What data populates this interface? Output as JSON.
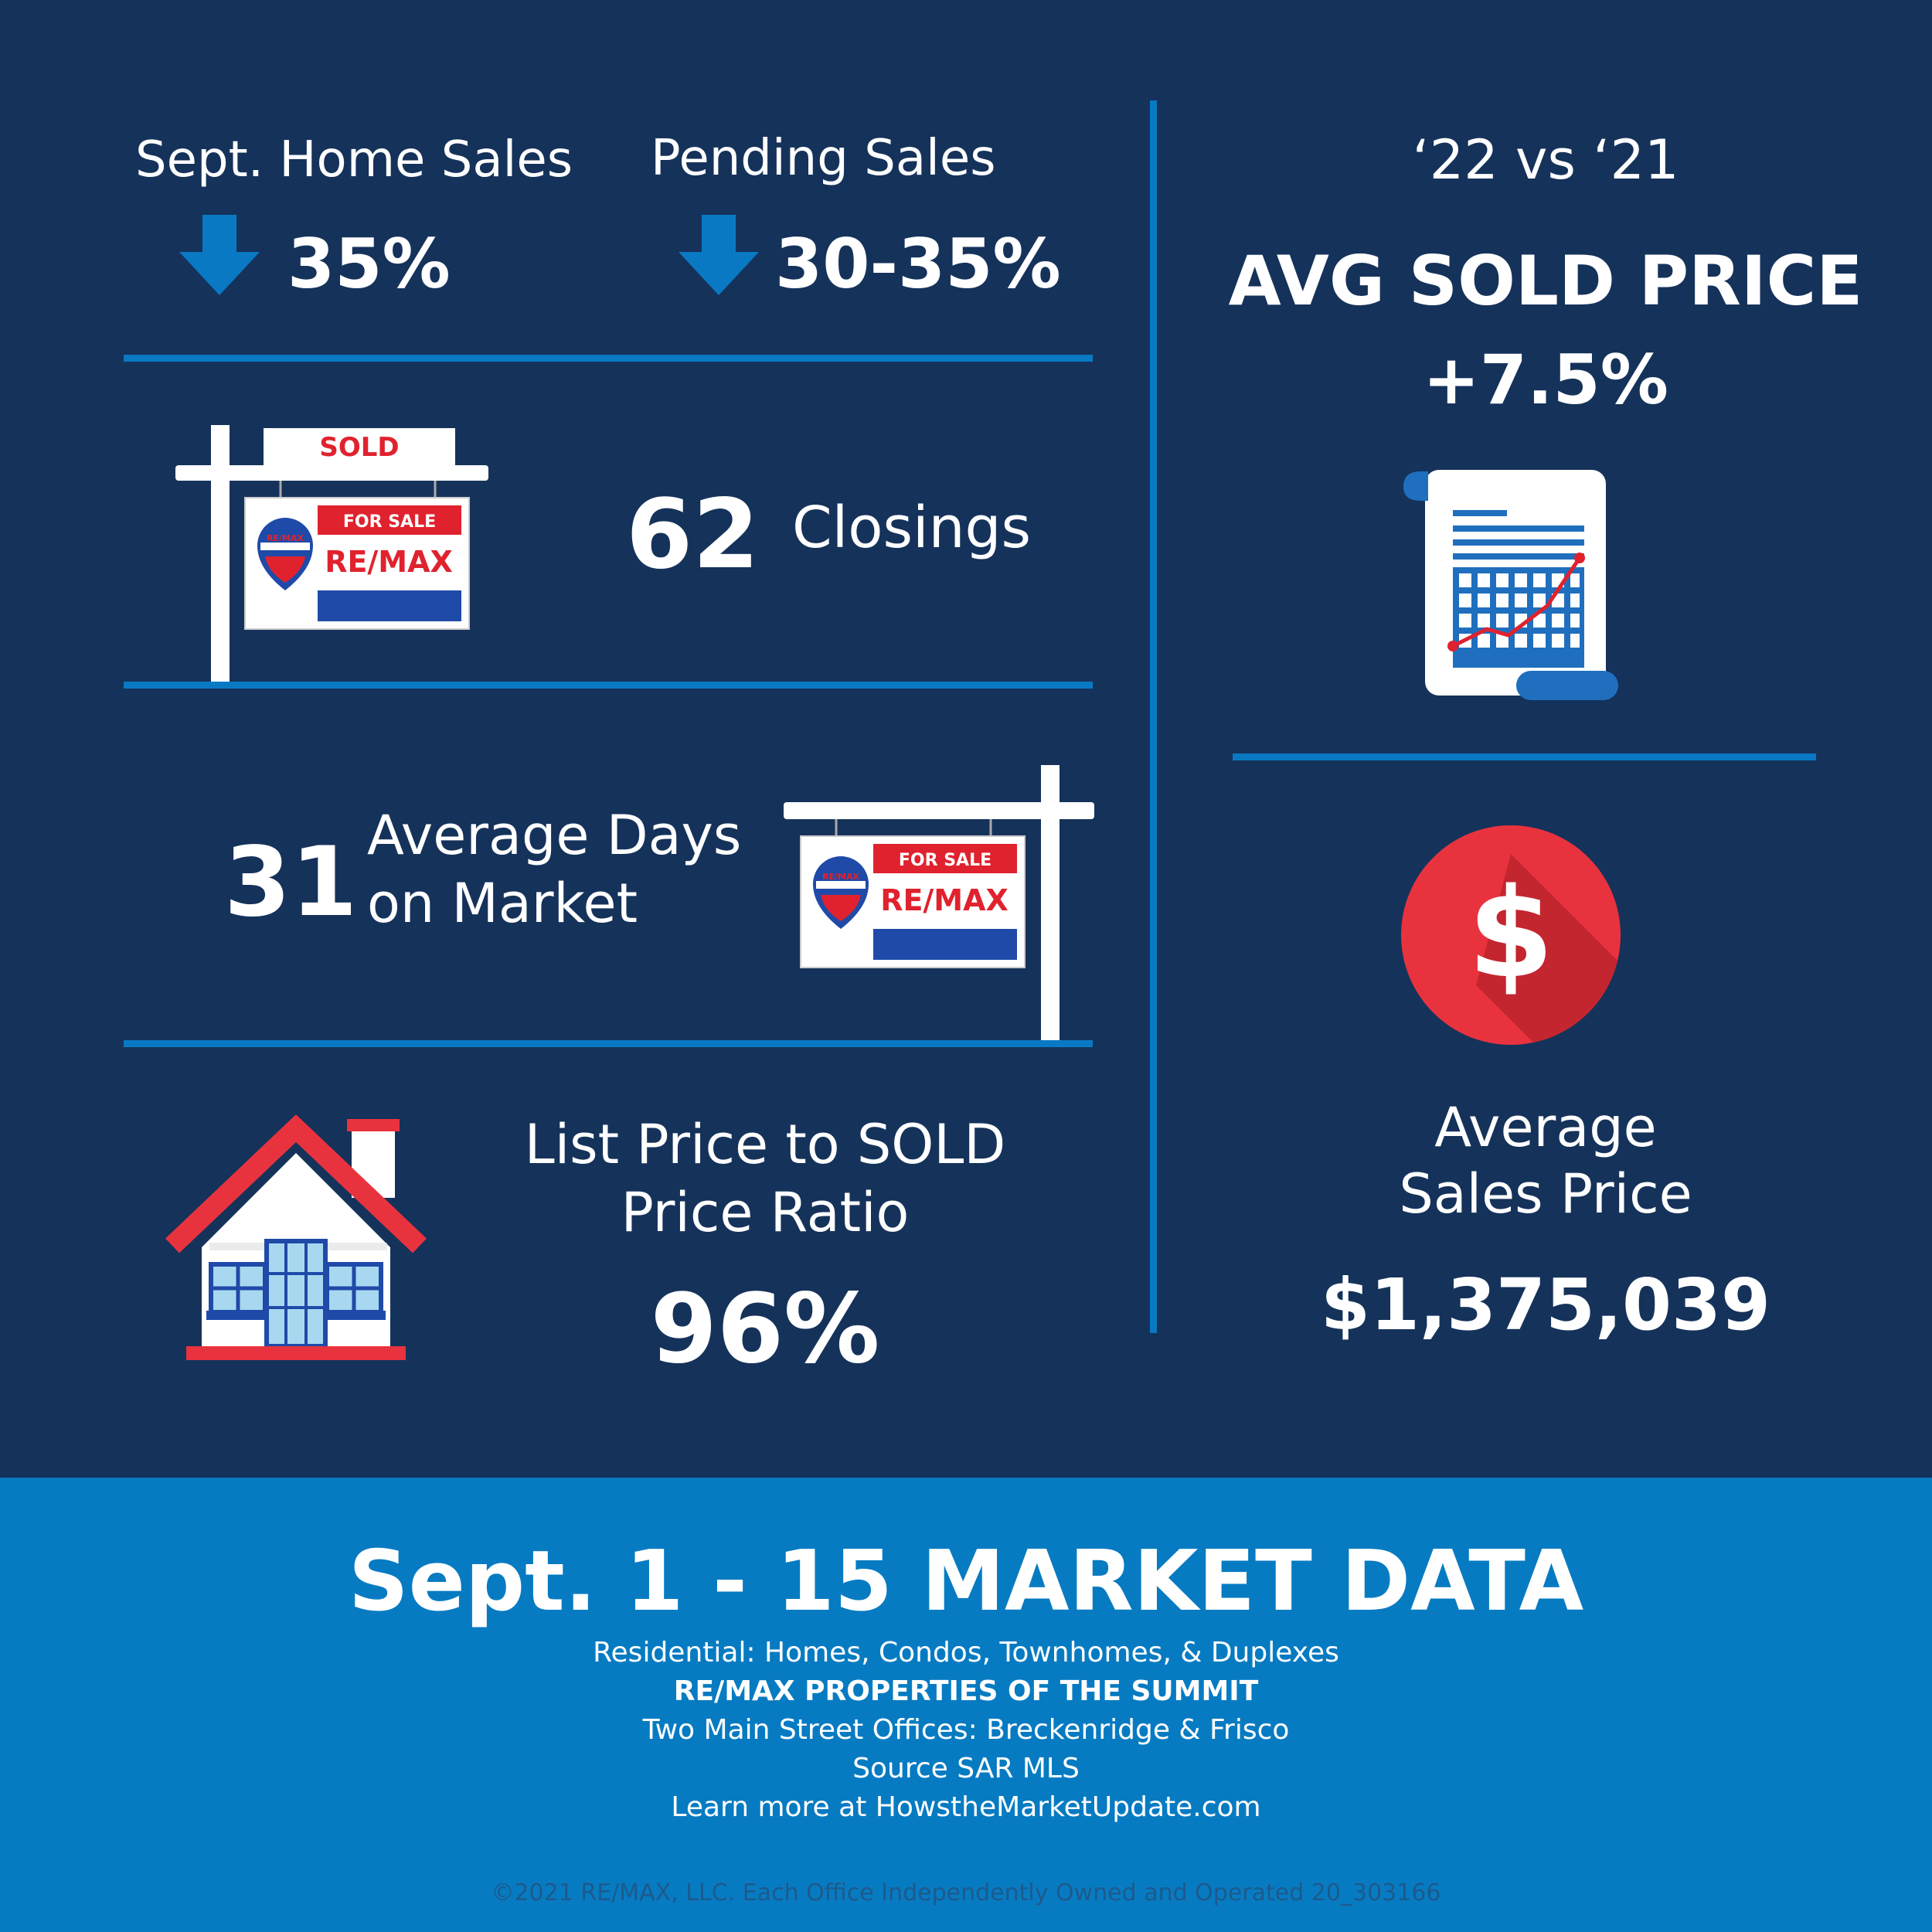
{
  "top_stats": {
    "home_sales": {
      "label": "Sept. Home Sales",
      "value": "35%",
      "icon": "down-arrow-icon"
    },
    "pending_sales": {
      "label": "Pending Sales",
      "value": "30-35%",
      "icon": "down-arrow-icon"
    }
  },
  "closings": {
    "value": "62",
    "label": "Closings"
  },
  "days_on_market": {
    "value": "31",
    "label_line1": "Average Days",
    "label_line2": "on Market"
  },
  "price_ratio": {
    "label_line1": "List Price to SOLD",
    "label_line2": "Price Ratio",
    "value": "96%"
  },
  "comparison": {
    "period": "‘22 vs ‘21",
    "title": "AVG SOLD PRICE",
    "value": "+7.5%"
  },
  "avg_sales_price": {
    "label_line1": "Average",
    "label_line2": "Sales Price",
    "value": "$1,375,039"
  },
  "signs": {
    "sold": "SOLD",
    "for_sale": "FOR SALE",
    "brand": "RE/MAX",
    "balloon_brand": "RE/MAX"
  },
  "footer": {
    "title": "Sept. 1 - 15 MARKET DATA",
    "line1": "Residential: Homes, Condos, Townhomes, & Duplexes",
    "line2": "RE/MAX PROPERTIES OF THE SUMMIT",
    "line3": "Two Main Street Offices: Breckenridge & Frisco",
    "line4": "Source SAR MLS",
    "line5": "Learn more at HowstheMarketUpdate.com",
    "copyright": "©2021 RE/MAX, LLC. Each Office Independently Owned and Operated 20_303166"
  },
  "colors": {
    "background": "#15325a",
    "accent_blue": "#0a79c4",
    "footer_blue": "#077bc2",
    "remax_red": "#e0222e",
    "remax_blue": "#1f4aa8"
  }
}
